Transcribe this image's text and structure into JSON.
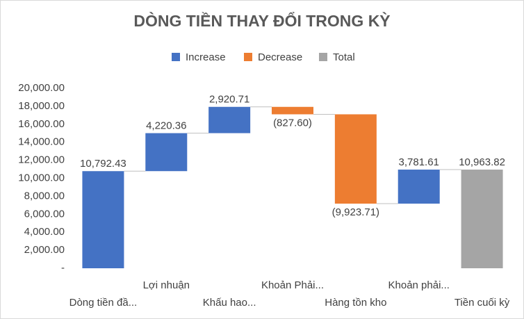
{
  "chart_data": {
    "type": "waterfall",
    "title": "DÒNG TIỀN THAY ĐỔI TRONG KỲ",
    "categories": [
      "Dòng tiền đầ...",
      "Lợi nhuận",
      "Khấu hao...",
      "Khoản Phải...",
      "Hàng tồn kho",
      "Khoản phải...",
      "Tiền cuối kỳ"
    ],
    "series": [
      {
        "name": "Increase",
        "color": "#4472c4",
        "values": [
          10792.43,
          4220.36,
          2920.71,
          null,
          null,
          3781.61,
          null
        ],
        "value_labels": [
          "10,792.43",
          "4,220.36",
          "2,920.71",
          null,
          null,
          "3,781.61",
          null
        ]
      },
      {
        "name": "Decrease",
        "color": "#ed7d31",
        "values": [
          null,
          null,
          null,
          -827.6,
          -9923.71,
          null,
          null
        ],
        "value_labels": [
          null,
          null,
          null,
          "(827.60)",
          "(9,923.71)",
          null,
          null
        ]
      },
      {
        "name": "Total",
        "color": "#a5a5a5",
        "values": [
          null,
          null,
          null,
          null,
          null,
          null,
          10963.82
        ],
        "value_labels": [
          null,
          null,
          null,
          null,
          null,
          null,
          "10,963.82"
        ]
      }
    ],
    "ylim": [
      0,
      20000
    ],
    "yticks": [
      {
        "value": 0,
        "label": "-"
      },
      {
        "value": 2000,
        "label": "2,000.00"
      },
      {
        "value": 4000,
        "label": "4,000.00"
      },
      {
        "value": 6000,
        "label": "6,000.00"
      },
      {
        "value": 8000,
        "label": "8,000.00"
      },
      {
        "value": 10000,
        "label": "10,000.00"
      },
      {
        "value": 12000,
        "label": "12,000.00"
      },
      {
        "value": 14000,
        "label": "14,000.00"
      },
      {
        "value": 16000,
        "label": "16,000.00"
      },
      {
        "value": 18000,
        "label": "18,000.00"
      },
      {
        "value": 20000,
        "label": "20,000.00"
      }
    ],
    "legend": "top"
  }
}
